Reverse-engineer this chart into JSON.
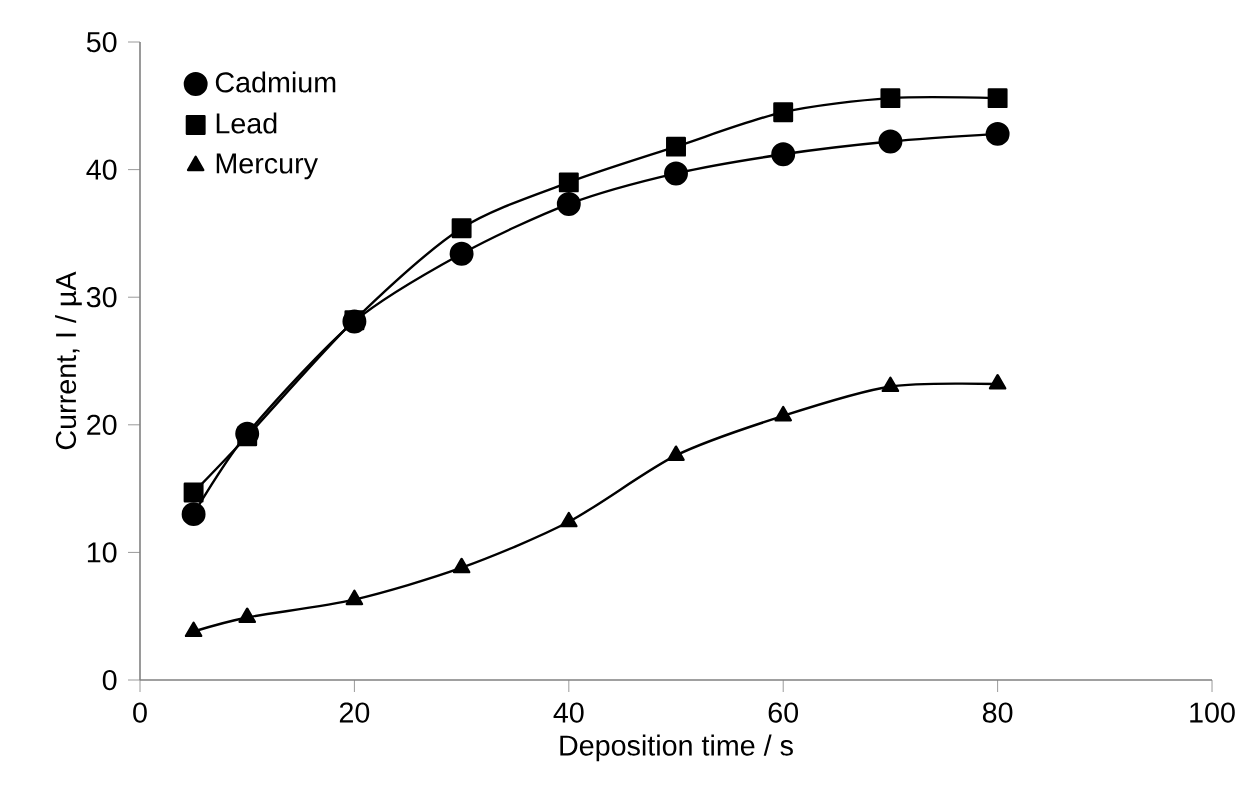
{
  "chart_data": {
    "type": "line",
    "xlabel": "Deposition time / s",
    "ylabel": "Current, I / µA",
    "x": [
      5,
      10,
      20,
      30,
      40,
      50,
      60,
      70,
      80
    ],
    "series": [
      {
        "name": "Cadmium",
        "color": "#000000",
        "marker": "circle",
        "values": [
          13.0,
          19.3,
          28.1,
          33.4,
          37.3,
          39.7,
          41.2,
          42.2,
          42.8
        ]
      },
      {
        "name": "Lead",
        "color": "#000000",
        "marker": "square",
        "values": [
          14.7,
          19.1,
          28.2,
          35.4,
          39.0,
          41.8,
          44.5,
          45.6,
          45.6
        ]
      },
      {
        "name": "Mercury",
        "color": "#000000",
        "marker": "triangle",
        "values": [
          3.8,
          4.9,
          6.3,
          8.8,
          12.4,
          17.6,
          20.7,
          23.0,
          23.2
        ]
      }
    ],
    "xlim": [
      0,
      100
    ],
    "ylim": [
      0,
      50
    ],
    "xticks": [
      0,
      20,
      40,
      60,
      80,
      100
    ],
    "yticks": [
      0,
      10,
      20,
      30,
      40,
      50
    ],
    "grid": false,
    "legend": "top left",
    "line_style": "solid"
  }
}
